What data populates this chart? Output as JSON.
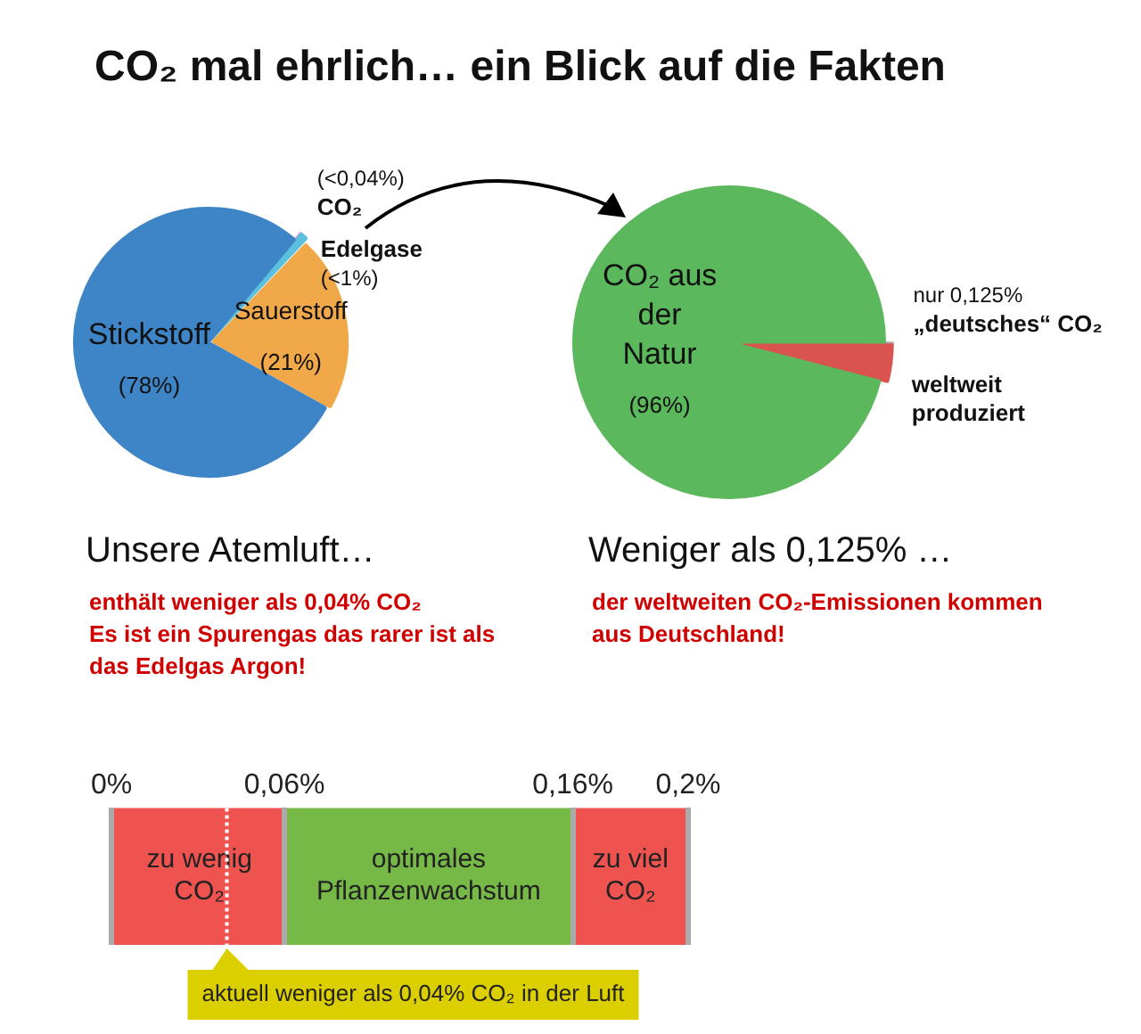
{
  "chart_data": [
    {
      "type": "pie",
      "title": "CO₂ mal ehrlich… ein Blick auf die Fakten",
      "subtitle": "Unsere Atemluft…",
      "categories": [
        "CO₂",
        "Edelgase",
        "Sauerstoff",
        "Stickstoff"
      ],
      "values": [
        0.04,
        0.96,
        21,
        78
      ],
      "colors": [
        "#e8a0c8",
        "#5bc0de",
        "#f0a848",
        "#3d85c6"
      ],
      "value_labels": [
        "(<0,04%)",
        "(<1%)",
        "(21%)",
        "(78%)"
      ],
      "annotations": [
        "enthält weniger als 0,04% CO₂",
        "Es ist ein Spurengas das rarer ist als das Edelgas Argon!"
      ],
      "legend": false
    },
    {
      "type": "pie",
      "subtitle": "Weniger als 0,125% …",
      "categories": [
        "„deutsches“ CO₂",
        "weltweit produziert",
        "CO₂ aus der Natur"
      ],
      "values": [
        0.125,
        3.875,
        96
      ],
      "colors": [
        "#aaaaaa",
        "#d9534f",
        "#5cb85c"
      ],
      "value_labels": [
        "nur 0,125%",
        null,
        "(96%)"
      ],
      "annotations": [
        "der weltweiten CO₂-Emissionen kommen aus Deutschland!"
      ],
      "legend": false
    },
    {
      "type": "bar",
      "orientation": "horizontal",
      "stacked": true,
      "categories": [
        null
      ],
      "series": [
        {
          "name": "zu wenig CO₂",
          "color": "#ef5350",
          "values": [
            0.06
          ]
        },
        {
          "name": "optimales Pflanzenwachstum",
          "color": "#76b947",
          "values": [
            0.1
          ]
        },
        {
          "name": "zu viel CO₂",
          "color": "#ef5350",
          "values": [
            0.04
          ]
        }
      ],
      "xlim": [
        0,
        0.2
      ],
      "xticks": [
        {
          "value": 0,
          "label": "0%"
        },
        {
          "value": 0.06,
          "label": "0,06%"
        },
        {
          "value": 0.16,
          "label": "0,16%"
        },
        {
          "value": 0.2,
          "label": "0,2%"
        }
      ],
      "grid": "x",
      "ref_lines": [
        {
          "axis": "x",
          "value": 0.04,
          "label": "aktuell weniger als 0,04% CO₂ in der Luft",
          "color": "#ffffff",
          "line_style": "dotted"
        }
      ],
      "legend": false
    }
  ]
}
